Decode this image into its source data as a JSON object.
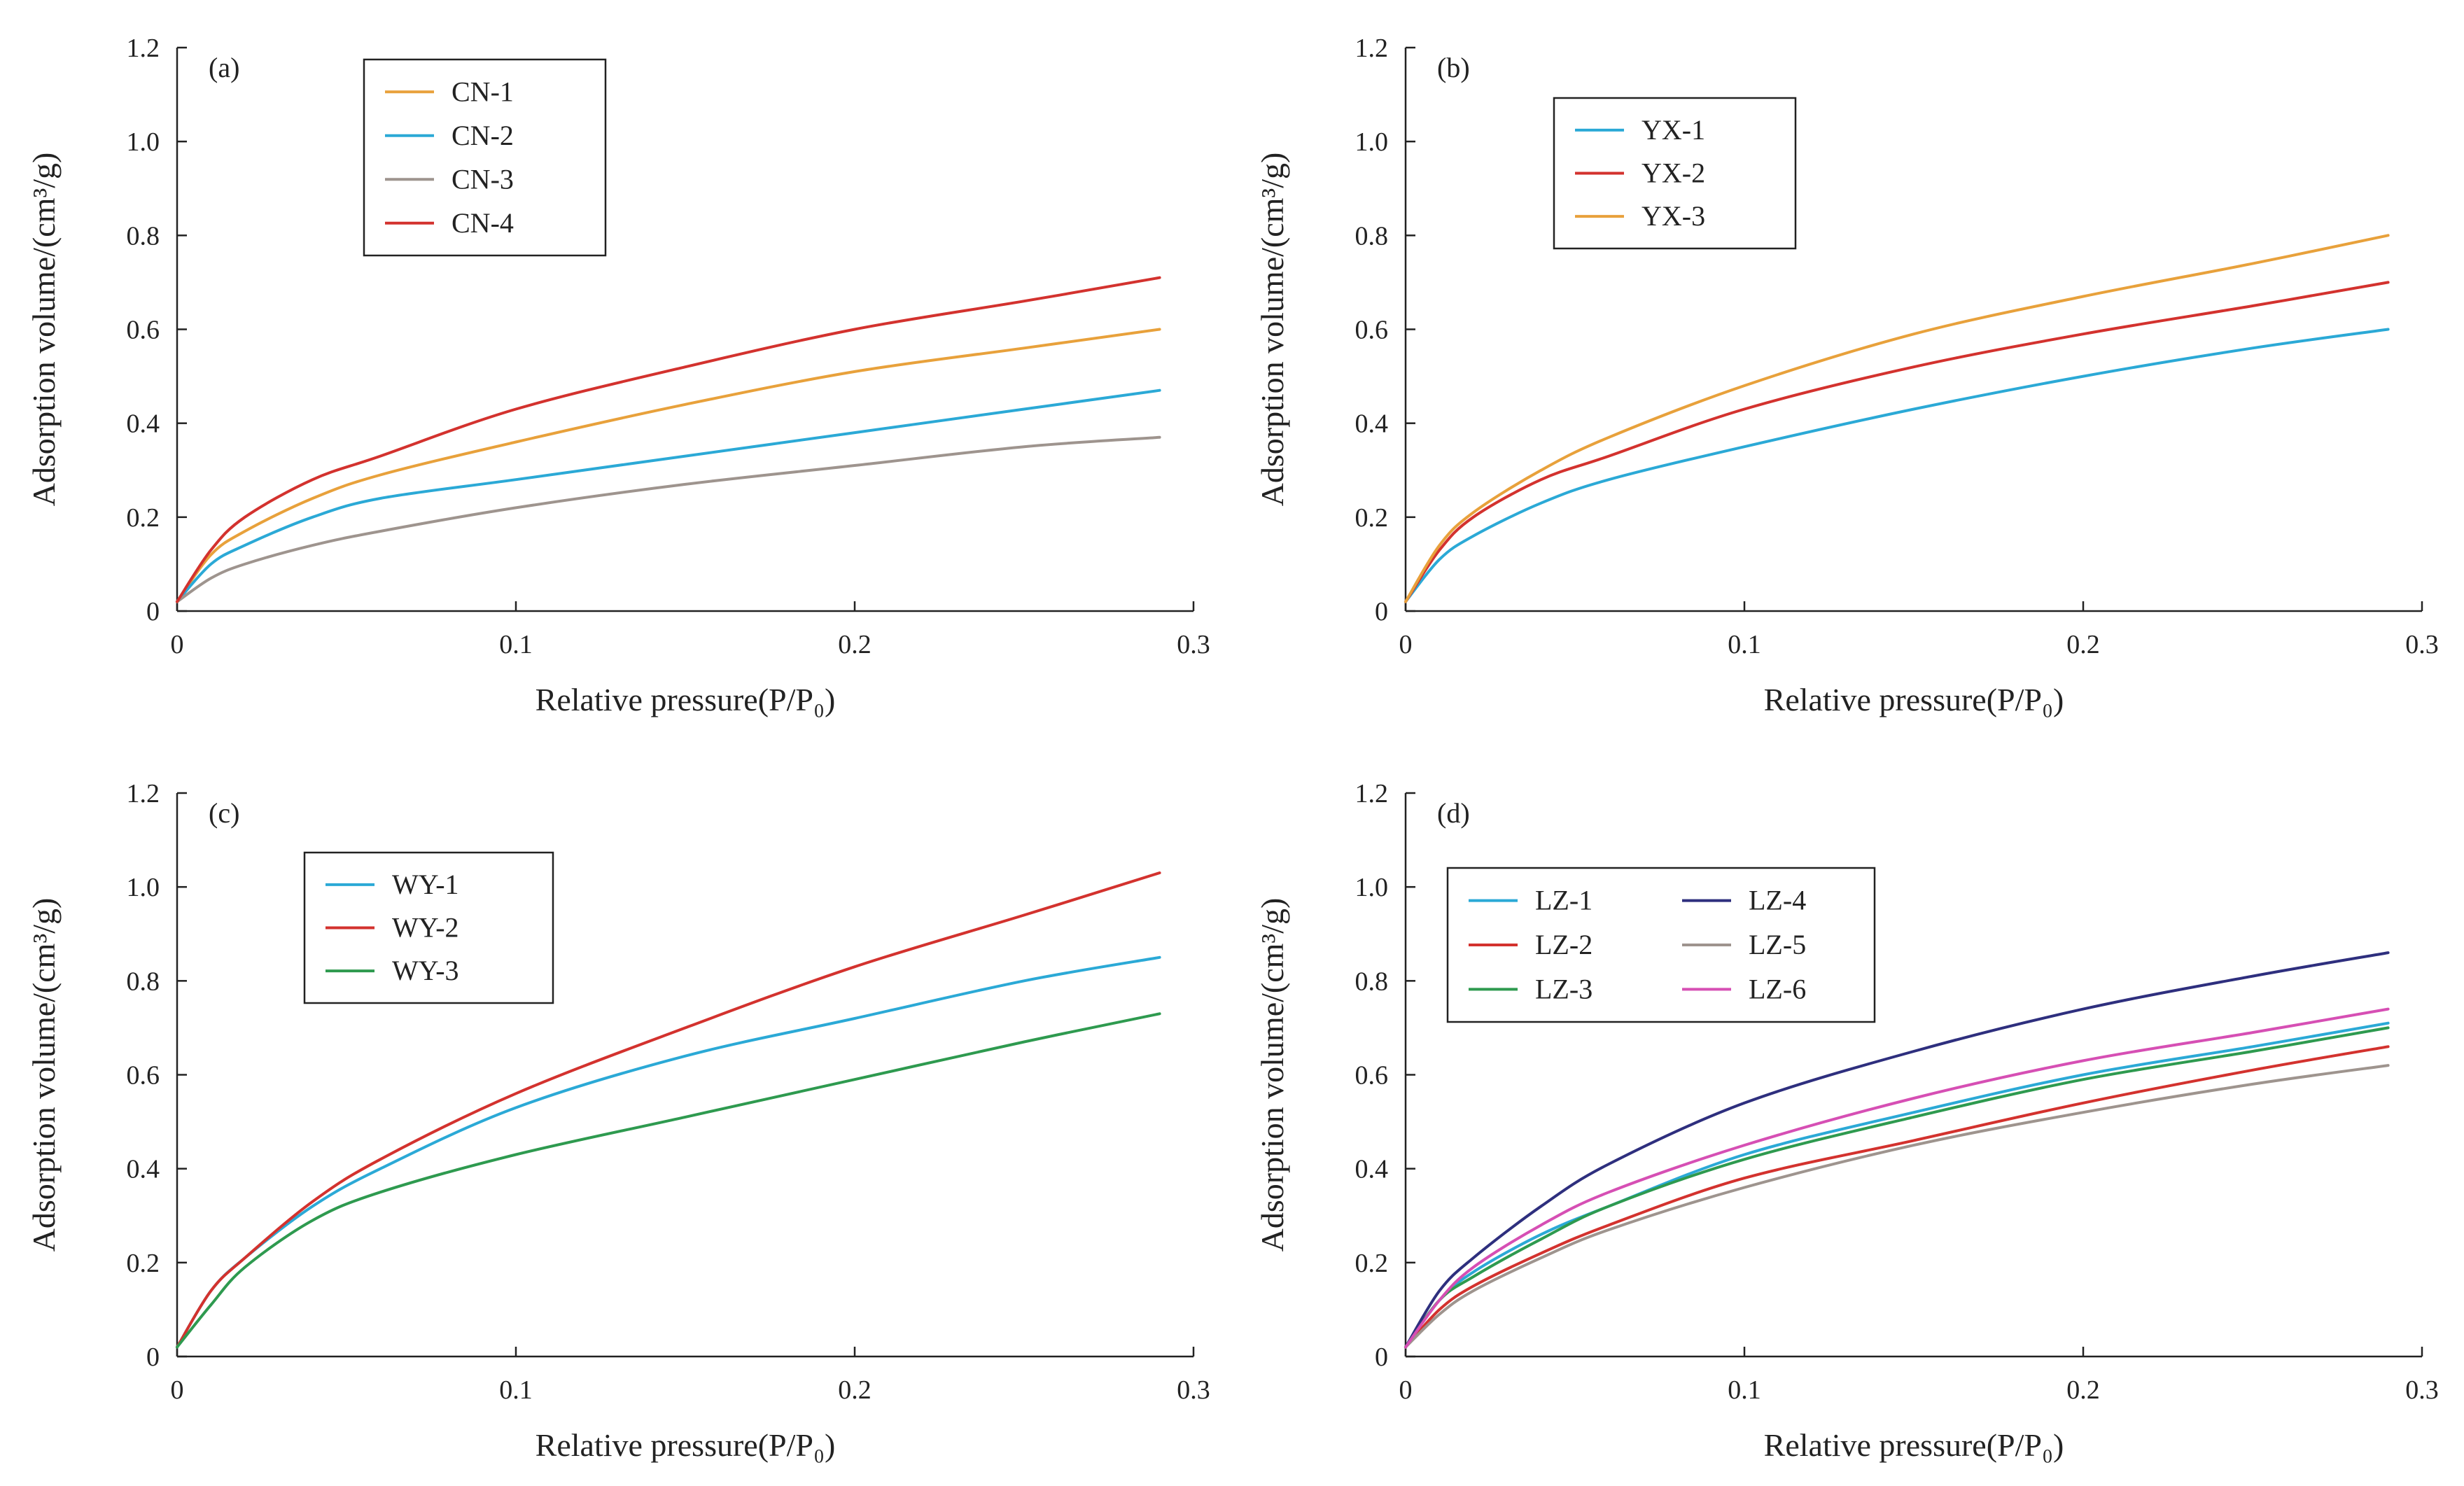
{
  "chart_data": [
    {
      "type": "line",
      "panel_label": "(a)",
      "xlabel": "Relative pressure(P/P₀)",
      "ylabel": "Adsorption  volume/(cm³/g)",
      "xlim": [
        0,
        0.3
      ],
      "ylim": [
        0,
        1.2
      ],
      "xticks": [
        "0",
        "0.1",
        "0.2",
        "0.3"
      ],
      "yticks": [
        "0",
        "0.2",
        "0.4",
        "0.6",
        "0.8",
        "1.0",
        "1.2"
      ],
      "legend_columns": 1,
      "series": [
        {
          "name": "CN-1",
          "color": "#E8A13B",
          "x": [
            0,
            0.01,
            0.02,
            0.04,
            0.06,
            0.1,
            0.15,
            0.2,
            0.25,
            0.29
          ],
          "y": [
            0.02,
            0.12,
            0.17,
            0.24,
            0.29,
            0.36,
            0.44,
            0.51,
            0.56,
            0.6
          ]
        },
        {
          "name": "CN-2",
          "color": "#2BA9D6",
          "x": [
            0,
            0.01,
            0.02,
            0.04,
            0.06,
            0.1,
            0.15,
            0.2,
            0.25,
            0.29
          ],
          "y": [
            0.02,
            0.1,
            0.14,
            0.2,
            0.24,
            0.28,
            0.33,
            0.38,
            0.43,
            0.47
          ]
        },
        {
          "name": "CN-3",
          "color": "#9E948E",
          "x": [
            0,
            0.01,
            0.02,
            0.04,
            0.06,
            0.1,
            0.15,
            0.2,
            0.25,
            0.29
          ],
          "y": [
            0.02,
            0.07,
            0.1,
            0.14,
            0.17,
            0.22,
            0.27,
            0.31,
            0.35,
            0.37
          ]
        },
        {
          "name": "CN-4",
          "color": "#D3322E",
          "x": [
            0,
            0.01,
            0.02,
            0.04,
            0.06,
            0.1,
            0.15,
            0.2,
            0.25,
            0.29
          ],
          "y": [
            0.02,
            0.13,
            0.2,
            0.28,
            0.33,
            0.43,
            0.52,
            0.6,
            0.66,
            0.71
          ]
        }
      ]
    },
    {
      "type": "line",
      "panel_label": "(b)",
      "xlabel": "Relative pressure(P/P₀)",
      "ylabel": "Adsorption  volume/(cm³/g)",
      "xlim": [
        0,
        0.3
      ],
      "ylim": [
        0,
        1.2
      ],
      "xticks": [
        "0",
        "0.1",
        "0.2",
        "0.3"
      ],
      "yticks": [
        "0",
        "0.2",
        "0.4",
        "0.6",
        "0.8",
        "1.0",
        "1.2"
      ],
      "legend_columns": 1,
      "series": [
        {
          "name": "YX-1",
          "color": "#2BA9D6",
          "x": [
            0,
            0.01,
            0.02,
            0.04,
            0.06,
            0.1,
            0.15,
            0.2,
            0.25,
            0.29
          ],
          "y": [
            0.02,
            0.11,
            0.16,
            0.23,
            0.28,
            0.35,
            0.43,
            0.5,
            0.56,
            0.6
          ]
        },
        {
          "name": "YX-2",
          "color": "#D3322E",
          "x": [
            0,
            0.01,
            0.02,
            0.04,
            0.06,
            0.1,
            0.15,
            0.2,
            0.25,
            0.29
          ],
          "y": [
            0.02,
            0.13,
            0.2,
            0.28,
            0.33,
            0.43,
            0.52,
            0.59,
            0.65,
            0.7
          ]
        },
        {
          "name": "YX-3",
          "color": "#E8A13B",
          "x": [
            0,
            0.01,
            0.02,
            0.04,
            0.06,
            0.1,
            0.15,
            0.2,
            0.25,
            0.29
          ],
          "y": [
            0.02,
            0.14,
            0.21,
            0.3,
            0.37,
            0.48,
            0.59,
            0.67,
            0.74,
            0.8
          ]
        }
      ]
    },
    {
      "type": "line",
      "panel_label": "(c)",
      "xlabel": "Relative pressure(P/P₀)",
      "ylabel": "Adsorption  volume/(cm³/g)",
      "xlim": [
        0,
        0.3
      ],
      "ylim": [
        0,
        1.2
      ],
      "xticks": [
        "0",
        "0.1",
        "0.2",
        "0.3"
      ],
      "yticks": [
        "0",
        "0.2",
        "0.4",
        "0.6",
        "0.8",
        "1.0",
        "1.2"
      ],
      "legend_columns": 1,
      "series": [
        {
          "name": "WY-1",
          "color": "#2BA9D6",
          "x": [
            0,
            0.01,
            0.02,
            0.04,
            0.06,
            0.1,
            0.15,
            0.2,
            0.25,
            0.29
          ],
          "y": [
            0.02,
            0.14,
            0.21,
            0.32,
            0.4,
            0.53,
            0.64,
            0.72,
            0.8,
            0.85
          ]
        },
        {
          "name": "WY-2",
          "color": "#D3322E",
          "x": [
            0,
            0.01,
            0.02,
            0.04,
            0.06,
            0.1,
            0.15,
            0.2,
            0.25,
            0.29
          ],
          "y": [
            0.02,
            0.14,
            0.21,
            0.33,
            0.42,
            0.56,
            0.7,
            0.83,
            0.94,
            1.03
          ]
        },
        {
          "name": "WY-3",
          "color": "#2E9A4F",
          "x": [
            0,
            0.01,
            0.02,
            0.04,
            0.06,
            0.1,
            0.15,
            0.2,
            0.25,
            0.29
          ],
          "y": [
            0.02,
            0.11,
            0.19,
            0.29,
            0.35,
            0.43,
            0.51,
            0.59,
            0.67,
            0.73
          ]
        }
      ]
    },
    {
      "type": "line",
      "panel_label": "(d)",
      "xlabel": "Relative pressure(P/P₀)",
      "ylabel": "Adsorption  volume/(cm³/g)",
      "xlim": [
        0,
        0.3
      ],
      "ylim": [
        0,
        1.2
      ],
      "xticks": [
        "0",
        "0.1",
        "0.2",
        "0.3"
      ],
      "yticks": [
        "0",
        "0.2",
        "0.4",
        "0.6",
        "0.8",
        "1.0",
        "1.2"
      ],
      "legend_columns": 2,
      "series": [
        {
          "name": "LZ-1",
          "color": "#2BA9D6",
          "x": [
            0,
            0.01,
            0.02,
            0.04,
            0.06,
            0.1,
            0.15,
            0.2,
            0.25,
            0.29
          ],
          "y": [
            0.02,
            0.12,
            0.18,
            0.26,
            0.32,
            0.43,
            0.52,
            0.6,
            0.66,
            0.71
          ]
        },
        {
          "name": "LZ-2",
          "color": "#D3322E",
          "x": [
            0,
            0.01,
            0.02,
            0.04,
            0.06,
            0.1,
            0.15,
            0.2,
            0.25,
            0.29
          ],
          "y": [
            0.02,
            0.1,
            0.15,
            0.22,
            0.28,
            0.38,
            0.46,
            0.54,
            0.61,
            0.66
          ]
        },
        {
          "name": "LZ-3",
          "color": "#2E9A4F",
          "x": [
            0,
            0.01,
            0.02,
            0.04,
            0.06,
            0.1,
            0.15,
            0.2,
            0.25,
            0.29
          ],
          "y": [
            0.02,
            0.12,
            0.17,
            0.25,
            0.32,
            0.42,
            0.51,
            0.59,
            0.65,
            0.7
          ]
        },
        {
          "name": "LZ-4",
          "color": "#2E2F7E",
          "x": [
            0,
            0.01,
            0.02,
            0.04,
            0.06,
            0.1,
            0.15,
            0.2,
            0.25,
            0.29
          ],
          "y": [
            0.02,
            0.14,
            0.21,
            0.32,
            0.41,
            0.54,
            0.65,
            0.74,
            0.81,
            0.86
          ]
        },
        {
          "name": "LZ-5",
          "color": "#9E948E",
          "x": [
            0,
            0.01,
            0.02,
            0.04,
            0.06,
            0.1,
            0.15,
            0.2,
            0.25,
            0.29
          ],
          "y": [
            0.02,
            0.09,
            0.14,
            0.21,
            0.27,
            0.36,
            0.45,
            0.52,
            0.58,
            0.62
          ]
        },
        {
          "name": "LZ-6",
          "color": "#D64FB4",
          "x": [
            0,
            0.01,
            0.02,
            0.04,
            0.06,
            0.1,
            0.15,
            0.2,
            0.25,
            0.29
          ],
          "y": [
            0.02,
            0.12,
            0.19,
            0.28,
            0.35,
            0.45,
            0.55,
            0.63,
            0.69,
            0.74
          ]
        }
      ]
    }
  ]
}
